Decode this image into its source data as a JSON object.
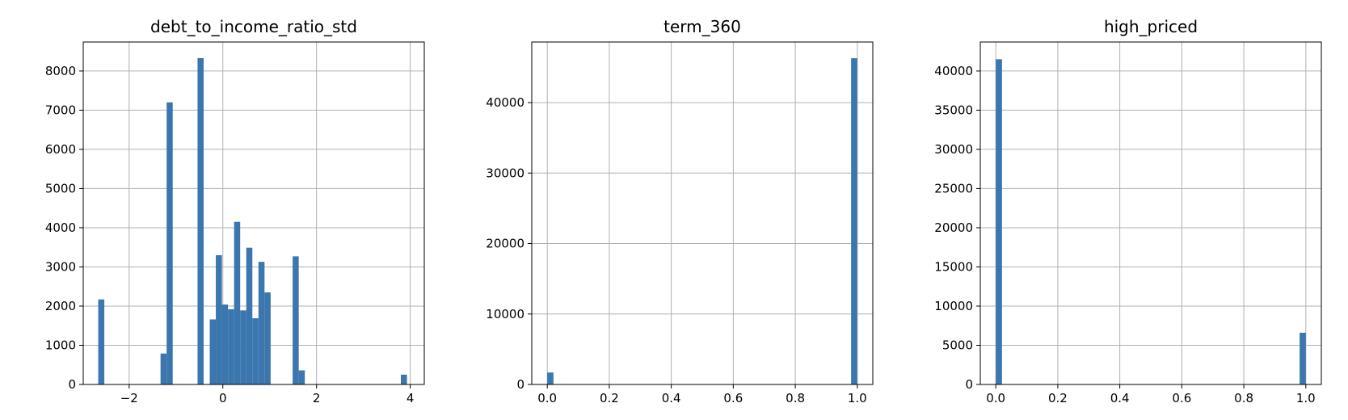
{
  "chart_data": [
    {
      "type": "bar",
      "subtype": "histogram",
      "title": "debt_to_income_ratio_std",
      "xlim": [
        -2.98,
        4.3
      ],
      "ylim": [
        0,
        8740
      ],
      "xticks": [
        -2,
        0,
        2,
        4
      ],
      "xtick_labels": [
        "−2",
        "0",
        "2",
        "4"
      ],
      "yticks": [
        0,
        1000,
        2000,
        3000,
        4000,
        5000,
        6000,
        7000,
        8000
      ],
      "ytick_labels": [
        "0",
        "1000",
        "2000",
        "3000",
        "4000",
        "5000",
        "6000",
        "7000",
        "8000"
      ],
      "grid": true,
      "color": "#3b76af",
      "bins": [
        {
          "x0": -2.66,
          "x1": -2.53,
          "value": 2170
        },
        {
          "x0": -1.33,
          "x1": -1.2,
          "value": 790
        },
        {
          "x0": -1.2,
          "x1": -1.07,
          "value": 7200
        },
        {
          "x0": -0.54,
          "x1": -0.41,
          "value": 8330
        },
        {
          "x0": -0.28,
          "x1": -0.15,
          "value": 1660
        },
        {
          "x0": -0.15,
          "x1": -0.02,
          "value": 3300
        },
        {
          "x0": -0.02,
          "x1": 0.11,
          "value": 2040
        },
        {
          "x0": 0.11,
          "x1": 0.24,
          "value": 1920
        },
        {
          "x0": 0.24,
          "x1": 0.37,
          "value": 4150
        },
        {
          "x0": 0.37,
          "x1": 0.5,
          "value": 1890
        },
        {
          "x0": 0.5,
          "x1": 0.63,
          "value": 3490
        },
        {
          "x0": 0.63,
          "x1": 0.76,
          "value": 1690
        },
        {
          "x0": 0.76,
          "x1": 0.89,
          "value": 3130
        },
        {
          "x0": 0.89,
          "x1": 1.02,
          "value": 2350
        },
        {
          "x0": 1.49,
          "x1": 1.62,
          "value": 3270
        },
        {
          "x0": 1.62,
          "x1": 1.75,
          "value": 360
        },
        {
          "x0": 3.8,
          "x1": 3.93,
          "value": 250
        }
      ]
    },
    {
      "type": "bar",
      "subtype": "histogram",
      "title": "term_360",
      "xlim": [
        -0.05,
        1.05
      ],
      "ylim": [
        0,
        48600
      ],
      "xticks": [
        0,
        0.2,
        0.4,
        0.6,
        0.8,
        1.0
      ],
      "xtick_labels": [
        "0.0",
        "0.2",
        "0.4",
        "0.6",
        "0.8",
        "1.0"
      ],
      "yticks": [
        0,
        10000,
        20000,
        30000,
        40000
      ],
      "ytick_labels": [
        "0",
        "10000",
        "20000",
        "30000",
        "40000"
      ],
      "grid": true,
      "color": "#3b76af",
      "bins": [
        {
          "x0": 0.0,
          "x1": 0.02,
          "value": 1700
        },
        {
          "x0": 0.98,
          "x1": 1.0,
          "value": 46300
        }
      ]
    },
    {
      "type": "bar",
      "subtype": "histogram",
      "title": "high_priced",
      "xlim": [
        -0.05,
        1.05
      ],
      "ylim": [
        0,
        43700
      ],
      "xticks": [
        0,
        0.2,
        0.4,
        0.6,
        0.8,
        1.0
      ],
      "xtick_labels": [
        "0.0",
        "0.2",
        "0.4",
        "0.6",
        "0.8",
        "1.0"
      ],
      "yticks": [
        0,
        5000,
        10000,
        15000,
        20000,
        25000,
        30000,
        35000,
        40000
      ],
      "ytick_labels": [
        "0",
        "5000",
        "10000",
        "15000",
        "20000",
        "25000",
        "30000",
        "35000",
        "40000"
      ],
      "grid": true,
      "color": "#3b76af",
      "bins": [
        {
          "x0": 0.0,
          "x1": 0.02,
          "value": 41500
        },
        {
          "x0": 0.98,
          "x1": 1.0,
          "value": 6600
        }
      ]
    }
  ]
}
